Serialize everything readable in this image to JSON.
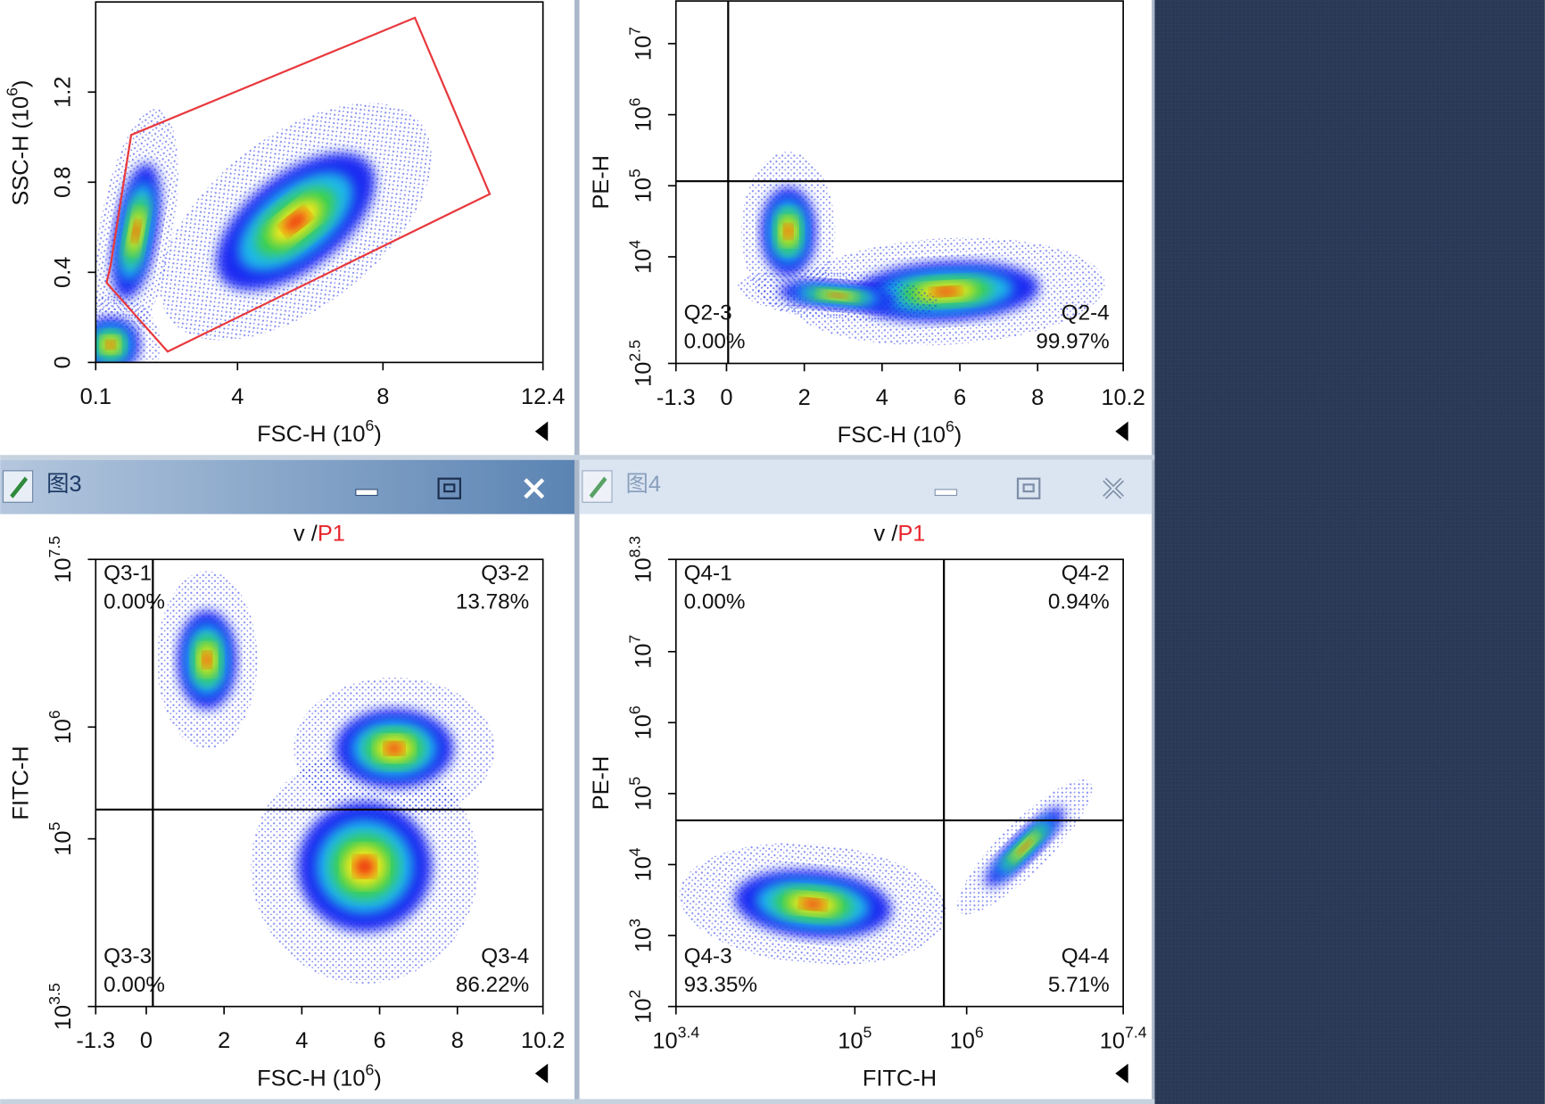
{
  "windows": [
    {
      "title": "图3"
    },
    {
      "title": "图4"
    }
  ],
  "plots": [
    {
      "x_axis": {
        "label": {
          "text": "FSC-H  (10",
          "sup": "6",
          "end": ")"
        },
        "range": [
          0.1,
          12.4
        ],
        "ticks": [
          0.1,
          4,
          8,
          12.4
        ]
      },
      "y_axis": {
        "label": {
          "text": "SSC-H  (10",
          "sup": "6",
          "end": ")"
        },
        "range": [
          0,
          1.6
        ],
        "ticks": [
          0,
          0.4,
          0.8,
          1.2
        ]
      },
      "quadrants": []
    },
    {
      "x_axis": {
        "label": {
          "text": "FSC-H  (10",
          "sup": "6",
          "end": ")"
        },
        "range": [
          -1.3,
          10.2
        ],
        "ticks": [
          -1.3,
          0,
          2,
          4,
          6,
          8,
          10.2
        ]
      },
      "y_axis": {
        "label": {
          "text": "PE-H"
        },
        "log": true,
        "range": [
          2.5,
          7.6
        ],
        "ticks": [
          {
            "base": "10",
            "exp": "2.5"
          },
          {
            "base": "10",
            "exp": "4"
          },
          {
            "base": "10",
            "exp": "5"
          },
          {
            "base": "10",
            "exp": "6"
          },
          {
            "base": "10",
            "exp": "7"
          }
        ]
      },
      "quadrants": [
        {
          "name": "Q2-3",
          "percent": "0.00%",
          "corner": "bottom-left"
        },
        {
          "name": "Q2-4",
          "percent": "99.97%",
          "corner": "bottom-right"
        }
      ]
    },
    {
      "title": {
        "plain": "v /",
        "gate": "P1"
      },
      "x_axis": {
        "label": {
          "text": "FSC-H  (10",
          "sup": "6",
          "end": ")"
        },
        "range": [
          -1.3,
          10.2
        ],
        "ticks": [
          -1.3,
          0,
          2,
          4,
          6,
          8,
          10.2
        ]
      },
      "y_axis": {
        "label": {
          "text": "FITC-H"
        },
        "log": true,
        "range": [
          3.5,
          7.5
        ],
        "ticks": [
          {
            "base": "10",
            "exp": "3.5"
          },
          {
            "base": "10",
            "exp": "5"
          },
          {
            "base": "10",
            "exp": "6"
          },
          {
            "base": "10",
            "exp": "7.5"
          }
        ]
      },
      "quadrants": [
        {
          "name": "Q3-1",
          "percent": "0.00%",
          "corner": "top-left"
        },
        {
          "name": "Q3-2",
          "percent": "13.78%",
          "corner": "top-right"
        },
        {
          "name": "Q3-3",
          "percent": "0.00%",
          "corner": "bottom-left"
        },
        {
          "name": "Q3-4",
          "percent": "86.22%",
          "corner": "bottom-right"
        }
      ]
    },
    {
      "title": {
        "plain": "v /",
        "gate": "P1"
      },
      "x_axis": {
        "label": {
          "text": "FITC-H"
        },
        "log": true,
        "range": [
          3.4,
          7.4
        ],
        "ticks": [
          {
            "base": "10",
            "exp": "3.4"
          },
          {
            "base": "10",
            "exp": "5"
          },
          {
            "base": "10",
            "exp": "6"
          },
          {
            "base": "10",
            "exp": "7.4"
          }
        ]
      },
      "y_axis": {
        "label": {
          "text": "PE-H"
        },
        "log": true,
        "range": [
          2,
          8.3
        ],
        "ticks": [
          {
            "base": "10",
            "exp": "2"
          },
          {
            "base": "10",
            "exp": "3"
          },
          {
            "base": "10",
            "exp": "4"
          },
          {
            "base": "10",
            "exp": "5"
          },
          {
            "base": "10",
            "exp": "6"
          },
          {
            "base": "10",
            "exp": "7"
          },
          {
            "base": "10",
            "exp": "8.3"
          }
        ]
      },
      "quadrants": [
        {
          "name": "Q4-1",
          "percent": "0.00%",
          "corner": "top-left"
        },
        {
          "name": "Q4-2",
          "percent": "0.94%",
          "corner": "top-right"
        },
        {
          "name": "Q4-3",
          "percent": "93.35%",
          "corner": "bottom-left"
        },
        {
          "name": "Q4-4",
          "percent": "5.71%",
          "corner": "bottom-right"
        }
      ]
    }
  ]
}
